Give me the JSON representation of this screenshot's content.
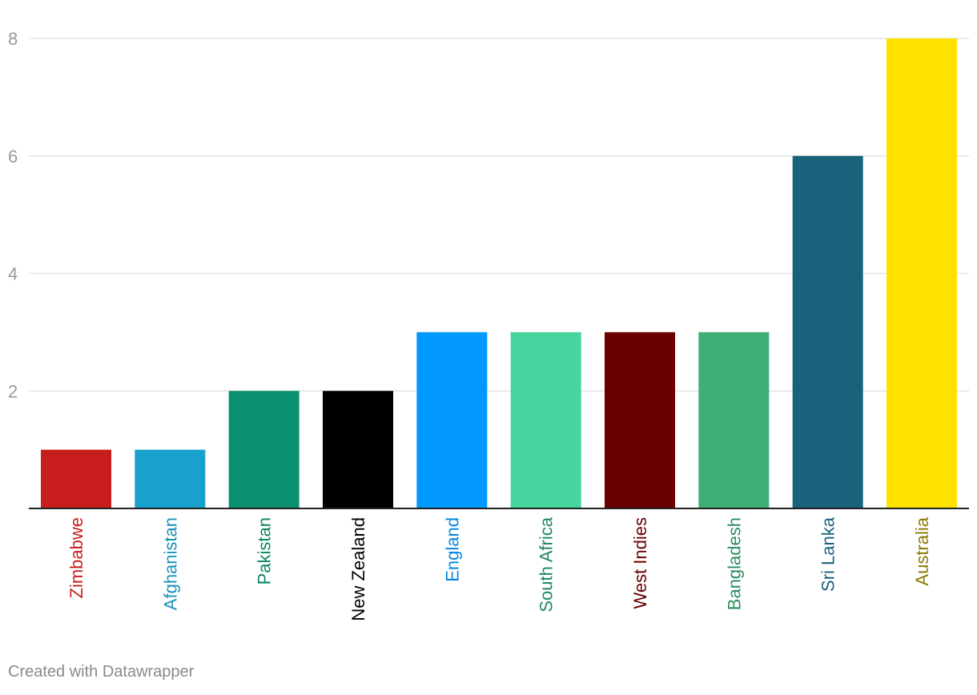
{
  "chart_data": {
    "type": "bar",
    "title": "",
    "xlabel": "",
    "ylabel": "",
    "ylim": [
      0,
      8
    ],
    "yticks": [
      2,
      4,
      6,
      8
    ],
    "grid": true,
    "categories": [
      "Zimbabwe",
      "Afghanistan",
      "Pakistan",
      "New Zealand",
      "England",
      "South Africa",
      "West Indies",
      "Bangladesh",
      "Sri Lanka",
      "Australia"
    ],
    "values": [
      1,
      1,
      2,
      2,
      3,
      3,
      3,
      3,
      6,
      8
    ],
    "bar_colors": [
      "#c71e1d",
      "#18a1cd",
      "#09916f",
      "#000000",
      "#0299fe",
      "#47d49e",
      "#6b0000",
      "#3ead76",
      "#18627c",
      "#fde200"
    ],
    "label_colors": [
      "#c71e1d",
      "#1892b9",
      "#0a8464",
      "#000000",
      "#0285e0",
      "#1c8a5c",
      "#6b0000",
      "#2a8d5c",
      "#18627c",
      "#8a7a00"
    ]
  },
  "footer": {
    "credit": "Created with Datawrapper"
  }
}
